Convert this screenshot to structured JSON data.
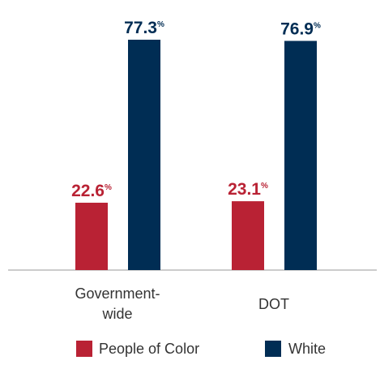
{
  "chart_data": {
    "type": "bar",
    "categories": [
      "Government-wide",
      "DOT"
    ],
    "category_lines": [
      [
        "Government-",
        "wide"
      ],
      [
        "DOT"
      ]
    ],
    "series": [
      {
        "name": "People of Color",
        "values": [
          22.6,
          23.1
        ],
        "color": "#b92234"
      },
      {
        "name": "White",
        "values": [
          77.3,
          76.9
        ],
        "color": "#002d54"
      }
    ],
    "value_suffix": "%",
    "ylim": [
      0,
      86
    ],
    "grid": false,
    "legend": "bottom-center",
    "axis_color": "#999999"
  }
}
